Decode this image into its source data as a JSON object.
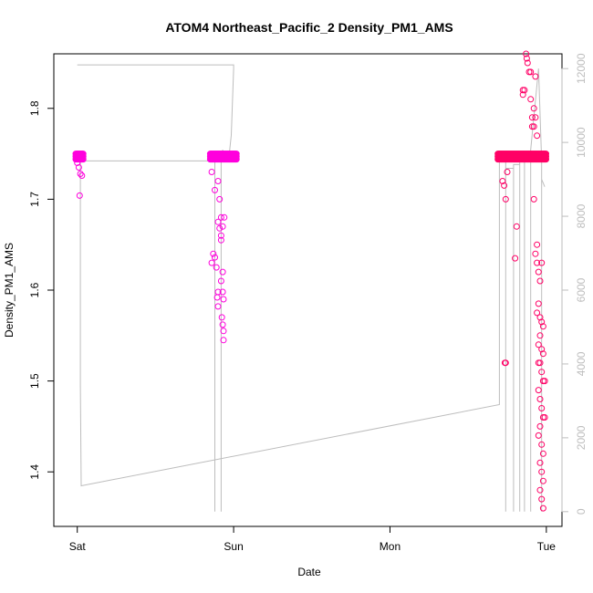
{
  "chart_data": {
    "type": "scatter",
    "title": "ATOM4 Northeast_Pacific_2 Density_PM1_AMS",
    "xlabel": "Date",
    "ylabel": "Density_PM1_AMS",
    "x_unit": "days",
    "x_ticks": [
      {
        "value": 0,
        "label": "Sat"
      },
      {
        "value": 1,
        "label": "Sun"
      },
      {
        "value": 2,
        "label": "Mon"
      },
      {
        "value": 3,
        "label": "Tue"
      }
    ],
    "xlim": [
      -0.15,
      3.1
    ],
    "ylim": [
      1.34,
      1.86
    ],
    "y_ticks": [
      1.4,
      1.5,
      1.6,
      1.7,
      1.8
    ],
    "y2_ticks": [
      0,
      2000,
      4000,
      6000,
      8000,
      10000,
      12000
    ],
    "y2lim": [
      -400,
      12400
    ],
    "grid": false,
    "colors": {
      "points_early": "#ff00dd",
      "points_late": "#ff0066",
      "line": "#bdbdbd",
      "axes": "#000000",
      "right_axis": "#bdbdbd"
    },
    "segments": [
      {
        "x_start": -0.01,
        "x_end": 0.04,
        "y_top": 1.75,
        "low_points": [
          [
            0.0,
            1.74
          ],
          [
            0.01,
            1.735
          ],
          [
            0.02,
            1.728
          ],
          [
            0.015,
            1.704
          ],
          [
            0.03,
            1.726
          ],
          [
            0.005,
            1.745
          ]
        ]
      },
      {
        "x_start": 0.85,
        "x_end": 1.02,
        "y_top": 1.75,
        "low_points": [
          [
            0.87,
            1.64
          ],
          [
            0.88,
            1.636
          ],
          [
            0.86,
            1.63
          ],
          [
            0.89,
            1.625
          ],
          [
            0.9,
            1.598
          ],
          [
            0.895,
            1.592
          ],
          [
            0.9,
            1.582
          ],
          [
            0.92,
            1.655
          ],
          [
            0.92,
            1.66
          ],
          [
            0.91,
            1.668
          ],
          [
            0.9,
            1.675
          ],
          [
            0.93,
            1.62
          ],
          [
            0.92,
            1.61
          ],
          [
            0.93,
            1.598
          ],
          [
            0.935,
            1.59
          ],
          [
            0.925,
            1.57
          ],
          [
            0.93,
            1.562
          ],
          [
            0.935,
            1.555
          ],
          [
            0.935,
            1.545
          ],
          [
            0.91,
            1.7
          ],
          [
            0.92,
            1.68
          ],
          [
            0.93,
            1.67
          ],
          [
            0.94,
            1.68
          ],
          [
            0.88,
            1.71
          ],
          [
            0.9,
            1.72
          ],
          [
            0.86,
            1.73
          ]
        ]
      },
      {
        "x_start": 2.69,
        "x_end": 3.0,
        "y_top": 1.75,
        "low_points": [
          [
            2.72,
            1.72
          ],
          [
            2.73,
            1.715
          ],
          [
            2.74,
            1.7
          ],
          [
            2.75,
            1.73
          ],
          [
            2.735,
            1.52
          ],
          [
            2.74,
            1.52
          ],
          [
            2.8,
            1.635
          ],
          [
            2.81,
            1.67
          ],
          [
            2.85,
            1.82
          ],
          [
            2.86,
            1.82
          ],
          [
            2.85,
            1.815
          ],
          [
            2.87,
            1.86
          ],
          [
            2.875,
            1.855
          ],
          [
            2.88,
            1.85
          ],
          [
            2.89,
            1.84
          ],
          [
            2.9,
            1.84
          ],
          [
            2.93,
            1.835
          ],
          [
            2.92,
            1.8
          ],
          [
            2.93,
            1.79
          ],
          [
            2.92,
            1.78
          ],
          [
            2.94,
            1.77
          ],
          [
            2.9,
            1.81
          ],
          [
            2.91,
            1.79
          ],
          [
            2.91,
            1.78
          ],
          [
            2.92,
            1.7
          ],
          [
            2.94,
            1.65
          ],
          [
            2.93,
            1.64
          ],
          [
            2.94,
            1.63
          ],
          [
            2.95,
            1.62
          ],
          [
            2.96,
            1.61
          ],
          [
            2.97,
            1.63
          ],
          [
            2.95,
            1.585
          ],
          [
            2.94,
            1.575
          ],
          [
            2.96,
            1.57
          ],
          [
            2.97,
            1.565
          ],
          [
            2.98,
            1.56
          ],
          [
            2.96,
            1.55
          ],
          [
            2.95,
            1.54
          ],
          [
            2.97,
            1.535
          ],
          [
            2.98,
            1.53
          ],
          [
            2.96,
            1.52
          ],
          [
            2.97,
            1.51
          ],
          [
            2.98,
            1.5
          ],
          [
            2.95,
            1.49
          ],
          [
            2.96,
            1.48
          ],
          [
            2.97,
            1.47
          ],
          [
            2.98,
            1.46
          ],
          [
            2.96,
            1.45
          ],
          [
            2.95,
            1.44
          ],
          [
            2.97,
            1.43
          ],
          [
            2.98,
            1.42
          ],
          [
            2.96,
            1.41
          ],
          [
            2.97,
            1.4
          ],
          [
            2.98,
            1.39
          ],
          [
            2.96,
            1.38
          ],
          [
            2.97,
            1.37
          ],
          [
            2.98,
            1.36
          ],
          [
            2.99,
            1.5
          ],
          [
            2.95,
            1.52
          ],
          [
            2.99,
            1.46
          ]
        ]
      }
    ],
    "line_path": [
      [
        0.0,
        12100
      ],
      [
        1.0,
        12100
      ],
      [
        1.0,
        12000
      ],
      [
        0.985,
        10200
      ],
      [
        0.975,
        9800
      ],
      [
        0.97,
        9500
      ],
      [
        0.96,
        9500
      ],
      [
        0.955,
        9500
      ],
      [
        0.95,
        9500
      ],
      [
        0.94,
        9600
      ],
      [
        0.93,
        9800
      ],
      [
        0.92,
        9500
      ],
      [
        0.92,
        0
      ],
      [
        0.92,
        9500
      ],
      [
        0.89,
        9500
      ],
      [
        0.88,
        9500
      ],
      [
        0.88,
        0
      ],
      [
        0.88,
        9500
      ],
      [
        0.02,
        9500
      ],
      [
        0.02,
        3400
      ],
      [
        0.025,
        700
      ],
      [
        2.7,
        2900
      ],
      [
        2.7,
        9500
      ],
      [
        2.74,
        9500
      ],
      [
        2.74,
        0
      ],
      [
        2.74,
        9300
      ],
      [
        2.79,
        9300
      ],
      [
        2.79,
        0
      ],
      [
        2.79,
        9400
      ],
      [
        2.83,
        9400
      ],
      [
        2.83,
        0
      ],
      [
        2.83,
        9700
      ],
      [
        2.86,
        9700
      ],
      [
        2.86,
        0
      ],
      [
        2.86,
        9600
      ],
      [
        2.9,
        9600
      ],
      [
        2.9,
        0
      ],
      [
        2.9,
        9800
      ],
      [
        2.95,
        12000
      ],
      [
        2.97,
        9500
      ],
      [
        2.97,
        0
      ],
      [
        2.97,
        9000
      ],
      [
        2.99,
        8800
      ]
    ]
  }
}
